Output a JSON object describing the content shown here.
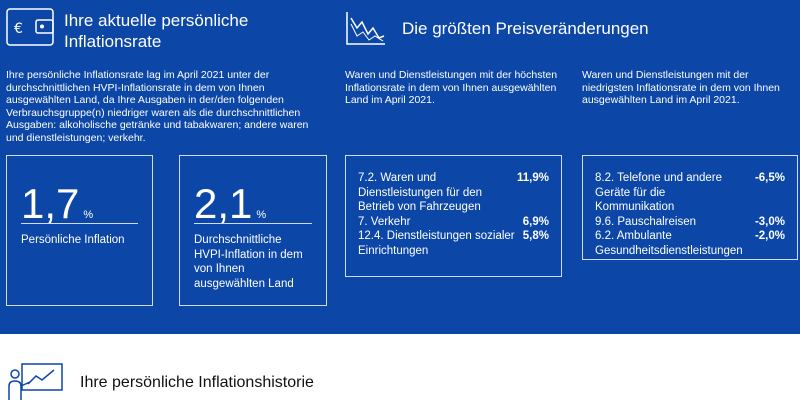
{
  "left": {
    "title": "Ihre aktuelle persönliche Inflationsrate",
    "description": "Ihre persönliche Inflationsrate lag im April 2021 unter der durchschnittlichen HVPI-Inflationsrate in dem von Ihnen ausgewählten Land, da Ihre Ausgaben in der/den folgenden Verbrauchsgruppe(n) niedriger waren als die durchschnittlichen Ausgaben: alkoholische getränke und tabakwaren; andere waren und dienstleistungen; verkehr.",
    "cards": [
      {
        "value": "1,7",
        "unit": "%",
        "label": "Persönliche Inflation"
      },
      {
        "value": "2,1",
        "unit": "%",
        "label": "Durchschnittliche HVPI-Inflation in dem von Ihnen ausgewählten Land"
      }
    ]
  },
  "right": {
    "title": "Die größten Preisveränderungen",
    "highest": {
      "description": "Waren und Dienstleistungen mit der höchsten Inflationsrate in dem von Ihnen ausgewählten Land im April 2021.",
      "items": [
        {
          "name": "7.2. Waren und Dienstleistungen für den Betrieb von Fahrzeugen",
          "value": "11,9%"
        },
        {
          "name": "7. Verkehr",
          "value": "6,9%"
        },
        {
          "name": "12.4. Dienstleistungen sozialer Einrichtungen",
          "value": "5,8%"
        }
      ]
    },
    "lowest": {
      "description": "Waren und Dienstleistungen mit der niedrigsten Inflationsrate in dem von Ihnen ausgewählten Land im April 2021.",
      "items": [
        {
          "name": "8.2. Telefone und andere Geräte für die Kommunikation",
          "value": "-6,5%"
        },
        {
          "name": "9.6. Pauschalreisen",
          "value": "-3,0%"
        },
        {
          "name": "6.2. Ambulante Gesundheitsdienstleistungen",
          "value": "-2,0%"
        }
      ]
    }
  },
  "history": {
    "title": "Ihre persönliche Inflationshistorie"
  }
}
